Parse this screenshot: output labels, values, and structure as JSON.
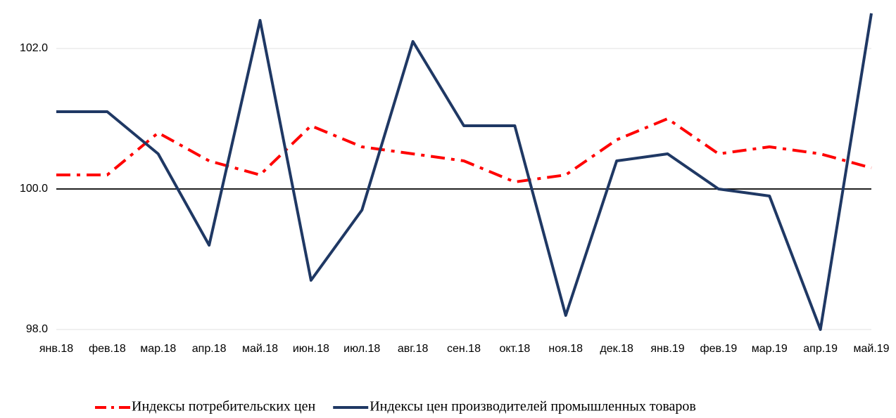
{
  "chart_data": {
    "type": "line",
    "categories": [
      "янв.18",
      "фев.18",
      "мар.18",
      "апр.18",
      "май.18",
      "июн.18",
      "июл.18",
      "авг.18",
      "сен.18",
      "окт.18",
      "ноя.18",
      "дек.18",
      "янв.19",
      "фев.19",
      "мар.19",
      "апр.19",
      "май.19"
    ],
    "series": [
      {
        "name": "Индексы потребительских цен",
        "color": "#ff0000",
        "dash": "dashdot",
        "values": [
          100.2,
          100.2,
          100.8,
          100.4,
          100.2,
          100.9,
          100.6,
          100.5,
          100.4,
          100.1,
          100.2,
          100.7,
          101.0,
          100.5,
          100.6,
          100.5,
          100.3
        ]
      },
      {
        "name": "Индексы цен производителей промышленных товаров",
        "color": "#1f3864",
        "dash": "solid",
        "values": [
          101.1,
          101.1,
          100.5,
          99.2,
          102.4,
          98.7,
          99.7,
          102.1,
          100.9,
          100.9,
          98.2,
          100.4,
          100.5,
          100.0,
          99.9,
          98.0,
          102.5
        ]
      }
    ],
    "ylim": [
      98,
      102.5
    ],
    "yticks": [
      {
        "value": 98,
        "label": "98.0"
      },
      {
        "value": 100,
        "label": "100.0"
      },
      {
        "value": 102,
        "label": "102.0"
      }
    ],
    "axis_crossing": 100,
    "grid": true,
    "legend": "bottom"
  }
}
